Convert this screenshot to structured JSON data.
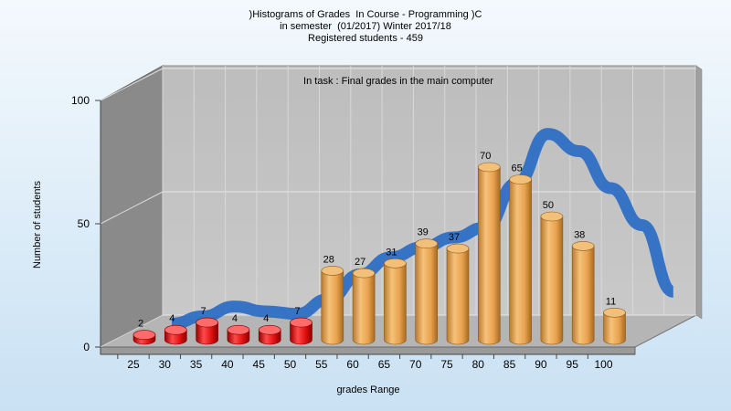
{
  "chart_data": {
    "type": "bar",
    "title": ")Histograms of Grades  In Course - Programming )C",
    "subtitle_lines": [
      "in semester  (01/2017) Winter 2017/18",
      "Registered students - 459"
    ],
    "annotation": "In task : Final grades in the main computer",
    "xlabel": "grades Range",
    "ylabel": "Number of students",
    "ylim": [
      0,
      100
    ],
    "yticks": [
      "0",
      "50",
      "100"
    ],
    "categories": [
      "25",
      "30",
      "35",
      "40",
      "45",
      "50",
      "55",
      "60",
      "65",
      "70",
      "75",
      "80",
      "85",
      "90",
      "95",
      "100"
    ],
    "series": [
      {
        "values": [
          2,
          4,
          7,
          4,
          4,
          7,
          28,
          27,
          31,
          39,
          37,
          70,
          65,
          50,
          38,
          11
        ]
      }
    ],
    "trend_values": [
      5,
      8,
      12,
      10,
      9,
      15,
      25,
      32,
      36,
      40,
      44,
      62,
      82,
      75,
      60,
      45,
      18
    ],
    "grid": true,
    "legend": "none",
    "colors": {
      "fail": "#e01010",
      "pass": "#e8a850",
      "trend": "#2f6fc4",
      "wall": "#c0c0c0"
    },
    "fail_threshold": 55
  }
}
